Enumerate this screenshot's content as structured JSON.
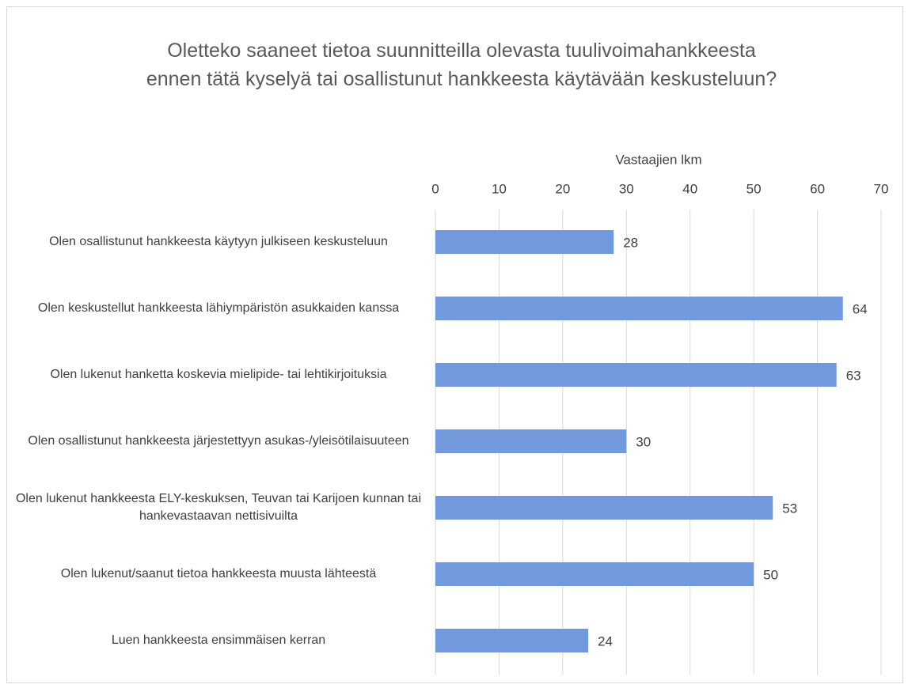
{
  "chart_data": {
    "type": "bar",
    "orientation": "horizontal",
    "title": "Oletteko saaneet tietoa suunnitteilla olevasta tuulivoimahankkeesta ennen tätä kyselyä tai osallistunut hankkeesta käytävään keskusteluun?",
    "xlabel": "Vastaajien lkm",
    "categories": [
      "Olen osallistunut hankkeesta käytyyn julkiseen keskusteluun",
      "Olen keskustellut hankkeesta lähiympäristön asukkaiden kanssa",
      "Olen lukenut hanketta koskevia mielipide- tai lehtikirjoituksia",
      "Olen osallistunut hankkeesta järjestettyyn asukas-/yleisötilaisuuteen",
      "Olen lukenut hankkeesta ELY-keskuksen, Teuvan tai Karijoen kunnan tai hankevastaavan nettisivuilta",
      "Olen lukenut/saanut tietoa hankkeesta muusta lähteestä",
      "Luen hankkeesta ensimmäisen kerran"
    ],
    "values": [
      28,
      64,
      63,
      30,
      53,
      50,
      24
    ],
    "color": "#7399dd",
    "xlim": [
      0,
      70
    ],
    "xticks": [
      0,
      10,
      20,
      30,
      40,
      50,
      60,
      70
    ],
    "grid": true
  }
}
